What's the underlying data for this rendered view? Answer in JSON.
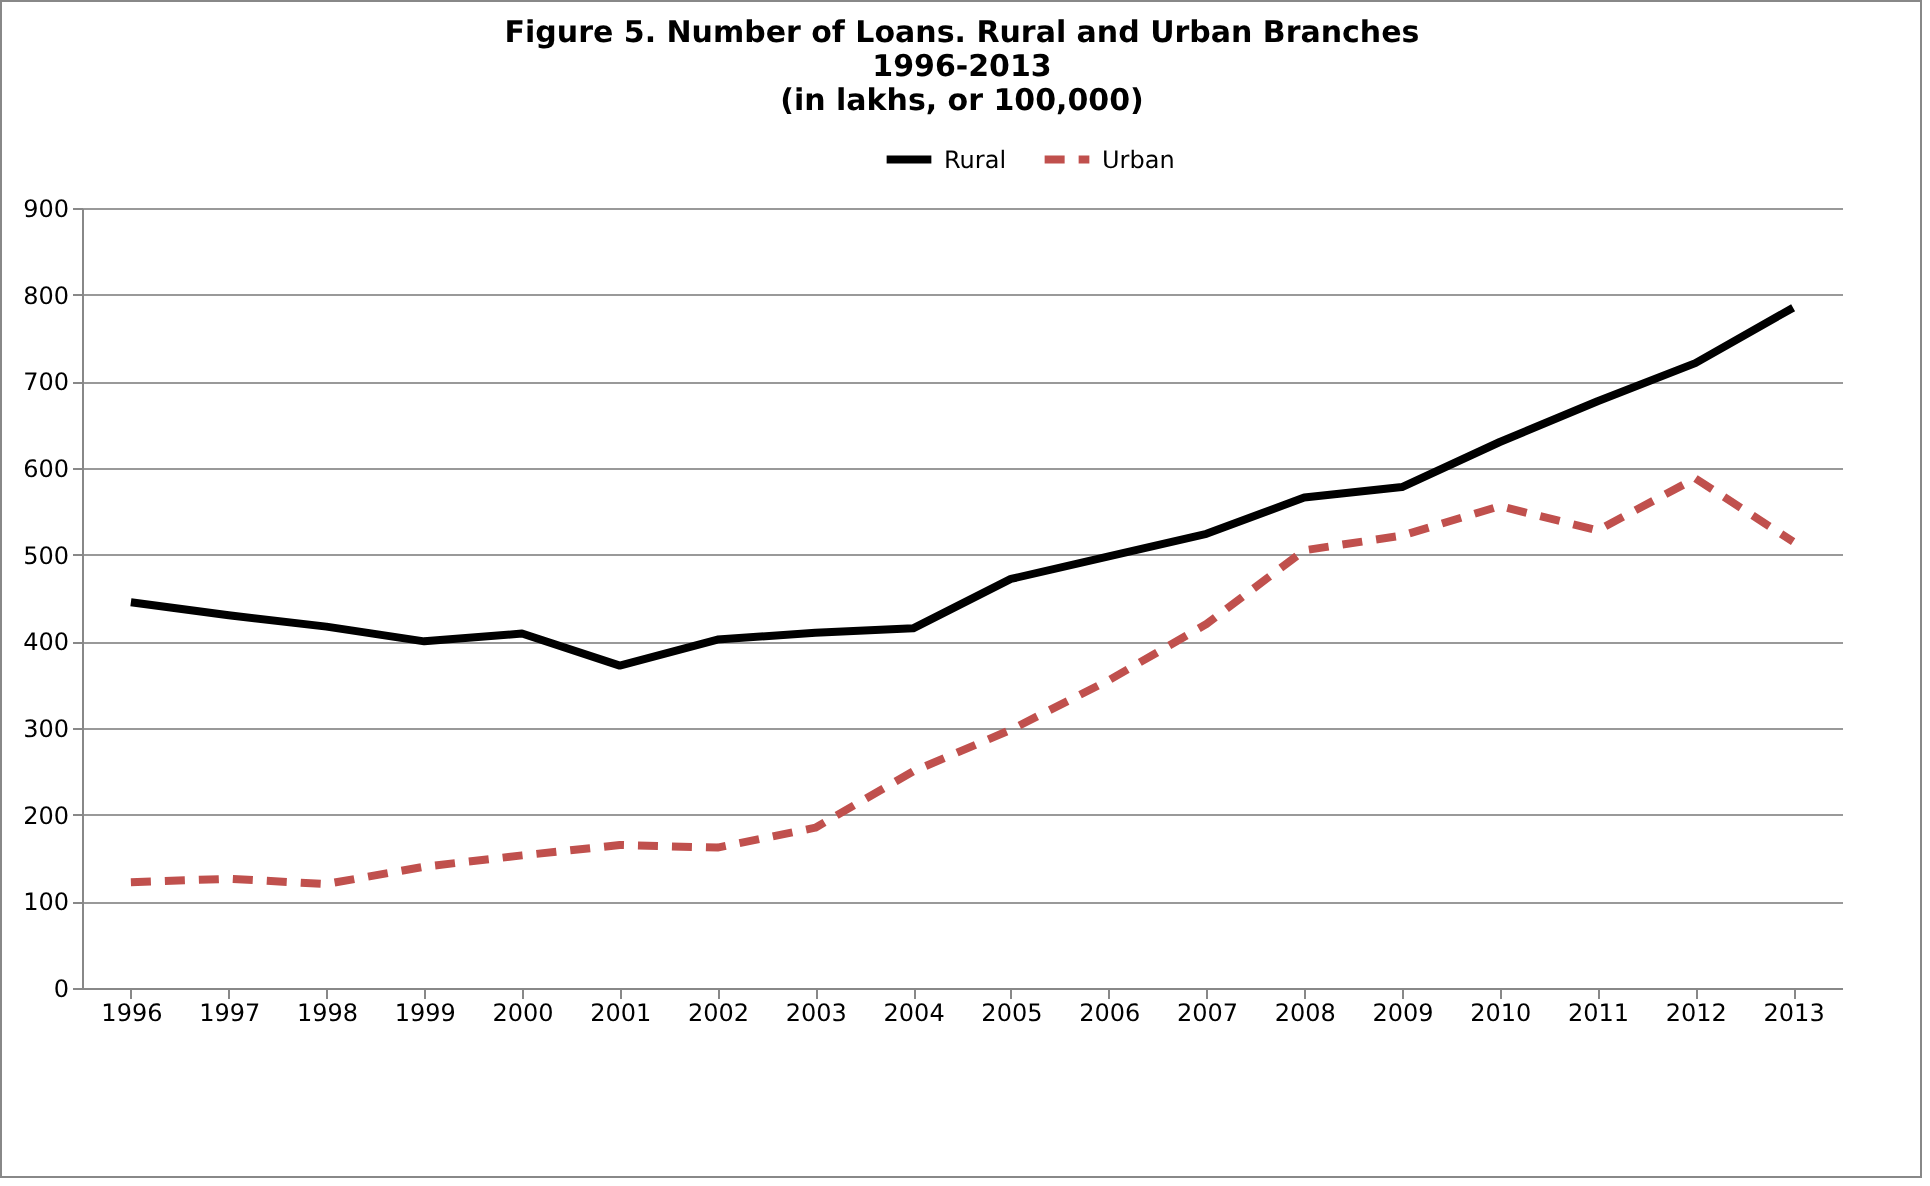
{
  "chart_data": {
    "type": "line",
    "title": "Figure 5. Number of Loans. Rural and Urban Branches\n1996-2013\n(in lakhs, or 100,000)",
    "categories": [
      "1996",
      "1997",
      "1998",
      "1999",
      "2000",
      "2001",
      "2002",
      "2003",
      "2004",
      "2005",
      "2006",
      "2007",
      "2008",
      "2009",
      "2010",
      "2011",
      "2012",
      "2013"
    ],
    "series": [
      {
        "name": "Rural",
        "color": "#000000",
        "line_style": "solid",
        "values": [
          445,
          430,
          417,
          400,
          409,
          372,
          402,
          410,
          415,
          472,
          498,
          524,
          566,
          578,
          630,
          677,
          721,
          785
        ]
      },
      {
        "name": "Urban",
        "color": "#c0504d",
        "line_style": "dashed",
        "values": [
          122,
          126,
          120,
          140,
          153,
          165,
          162,
          185,
          250,
          298,
          355,
          420,
          505,
          522,
          556,
          528,
          588,
          515
        ]
      }
    ],
    "ylim": [
      0,
      900
    ],
    "yticks": [
      0,
      100,
      200,
      300,
      400,
      500,
      600,
      700,
      800,
      900
    ],
    "grid": "y",
    "legend": "top",
    "marker": "none"
  }
}
